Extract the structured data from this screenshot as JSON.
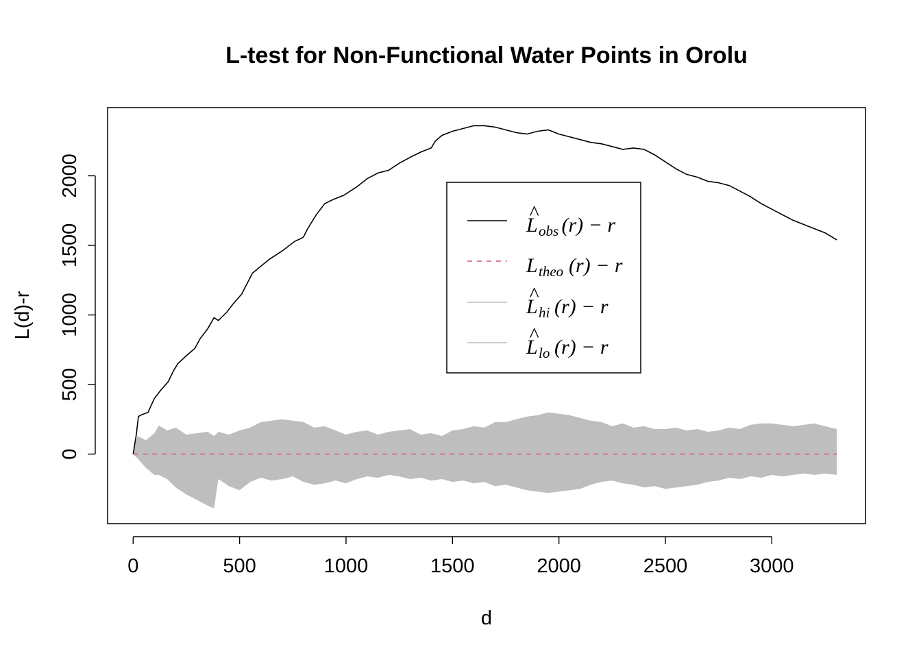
{
  "chart_data": {
    "type": "line",
    "title": "L-test for Non-Functional Water Points in Orolu",
    "xlabel": "d",
    "ylabel": "L(d)-r",
    "xlim": [
      -120,
      3440
    ],
    "ylim": [
      -500,
      2490
    ],
    "x_ticks": [
      0,
      500,
      1000,
      1500,
      2000,
      2500,
      3000
    ],
    "x_tick_labels": [
      "0",
      "500",
      "1000",
      "1500",
      "2000",
      "2500",
      "3000"
    ],
    "y_ticks": [
      0,
      500,
      1000,
      1500,
      2000
    ],
    "y_tick_labels": [
      "0",
      "500",
      "1000",
      "1500",
      "2000"
    ],
    "grid": false,
    "legend_position": "center",
    "legend": [
      {
        "label_main": "L",
        "hat": true,
        "sub": "obs",
        "tail": "(r) − r",
        "style": "solid",
        "color": "#000000"
      },
      {
        "label_main": "L",
        "hat": false,
        "sub": "theo",
        "tail": "(r) − r",
        "style": "dashed",
        "color": "#DF536B"
      },
      {
        "label_main": "L",
        "hat": true,
        "sub": "hi",
        "tail": "(r) − r",
        "style": "solid",
        "color": "#BEBEBE"
      },
      {
        "label_main": "L",
        "hat": true,
        "sub": "lo",
        "tail": "(r) − r",
        "style": "solid",
        "color": "#BEBEBE"
      }
    ],
    "series": [
      {
        "name": "obs",
        "color": "#000000",
        "x": [
          0,
          15,
          25,
          35,
          70,
          100,
          130,
          165,
          190,
          210,
          245,
          290,
          315,
          350,
          380,
          400,
          440,
          470,
          510,
          560,
          600,
          640,
          700,
          760,
          790,
          800,
          820,
          860,
          900,
          940,
          990,
          1050,
          1100,
          1150,
          1200,
          1250,
          1310,
          1350,
          1400,
          1420,
          1450,
          1500,
          1550,
          1600,
          1650,
          1700,
          1750,
          1800,
          1850,
          1900,
          1950,
          2000,
          2050,
          2100,
          2150,
          2200,
          2250,
          2300,
          2350,
          2400,
          2450,
          2500,
          2550,
          2600,
          2650,
          2700,
          2750,
          2800,
          2850,
          2900,
          2950,
          3000,
          3050,
          3100,
          3150,
          3200,
          3250,
          3305
        ],
        "y": [
          0,
          140,
          270,
          280,
          300,
          400,
          460,
          520,
          600,
          650,
          700,
          760,
          830,
          900,
          980,
          960,
          1020,
          1080,
          1150,
          1300,
          1350,
          1400,
          1460,
          1530,
          1550,
          1560,
          1620,
          1720,
          1800,
          1830,
          1860,
          1920,
          1980,
          2020,
          2040,
          2090,
          2140,
          2170,
          2200,
          2250,
          2290,
          2320,
          2340,
          2360,
          2360,
          2350,
          2330,
          2310,
          2300,
          2320,
          2330,
          2300,
          2280,
          2260,
          2240,
          2230,
          2210,
          2190,
          2200,
          2190,
          2150,
          2100,
          2050,
          2010,
          1990,
          1960,
          1950,
          1930,
          1890,
          1850,
          1800,
          1760,
          1720,
          1680,
          1650,
          1620,
          1590,
          1540
        ]
      },
      {
        "name": "theo",
        "color": "#DF536B",
        "x": [
          0,
          3305
        ],
        "y": [
          0,
          0
        ]
      }
    ],
    "envelope": {
      "color": "#BEBEBE",
      "x": [
        0,
        20,
        60,
        100,
        120,
        160,
        200,
        250,
        300,
        350,
        380,
        400,
        450,
        500,
        550,
        600,
        650,
        700,
        750,
        800,
        850,
        900,
        950,
        1000,
        1050,
        1100,
        1150,
        1200,
        1250,
        1300,
        1350,
        1400,
        1450,
        1500,
        1550,
        1600,
        1650,
        1700,
        1750,
        1800,
        1850,
        1900,
        1950,
        2000,
        2050,
        2100,
        2150,
        2200,
        2250,
        2300,
        2350,
        2400,
        2450,
        2500,
        2550,
        2600,
        2650,
        2700,
        2750,
        2800,
        2850,
        2900,
        2950,
        3000,
        3050,
        3100,
        3150,
        3200,
        3250,
        3305
      ],
      "hi": [
        0,
        130,
        100,
        150,
        205,
        170,
        190,
        140,
        150,
        160,
        130,
        160,
        140,
        170,
        190,
        230,
        240,
        250,
        240,
        230,
        190,
        200,
        170,
        140,
        160,
        170,
        140,
        160,
        170,
        180,
        140,
        150,
        130,
        170,
        180,
        200,
        190,
        230,
        230,
        250,
        270,
        280,
        300,
        290,
        280,
        260,
        240,
        230,
        200,
        220,
        190,
        200,
        180,
        180,
        190,
        170,
        180,
        160,
        170,
        190,
        180,
        210,
        220,
        220,
        210,
        200,
        210,
        220,
        200,
        180
      ],
      "lo": [
        0,
        -30,
        -100,
        -150,
        -150,
        -180,
        -240,
        -290,
        -330,
        -370,
        -390,
        -180,
        -230,
        -260,
        -200,
        -170,
        -190,
        -180,
        -160,
        -200,
        -220,
        -210,
        -190,
        -210,
        -180,
        -160,
        -170,
        -150,
        -160,
        -180,
        -170,
        -190,
        -180,
        -200,
        -190,
        -210,
        -200,
        -230,
        -220,
        -240,
        -260,
        -270,
        -280,
        -270,
        -260,
        -250,
        -220,
        -200,
        -190,
        -210,
        -220,
        -240,
        -230,
        -250,
        -240,
        -230,
        -220,
        -200,
        -190,
        -170,
        -180,
        -160,
        -170,
        -150,
        -160,
        -150,
        -140,
        -150,
        -140,
        -150
      ]
    }
  }
}
